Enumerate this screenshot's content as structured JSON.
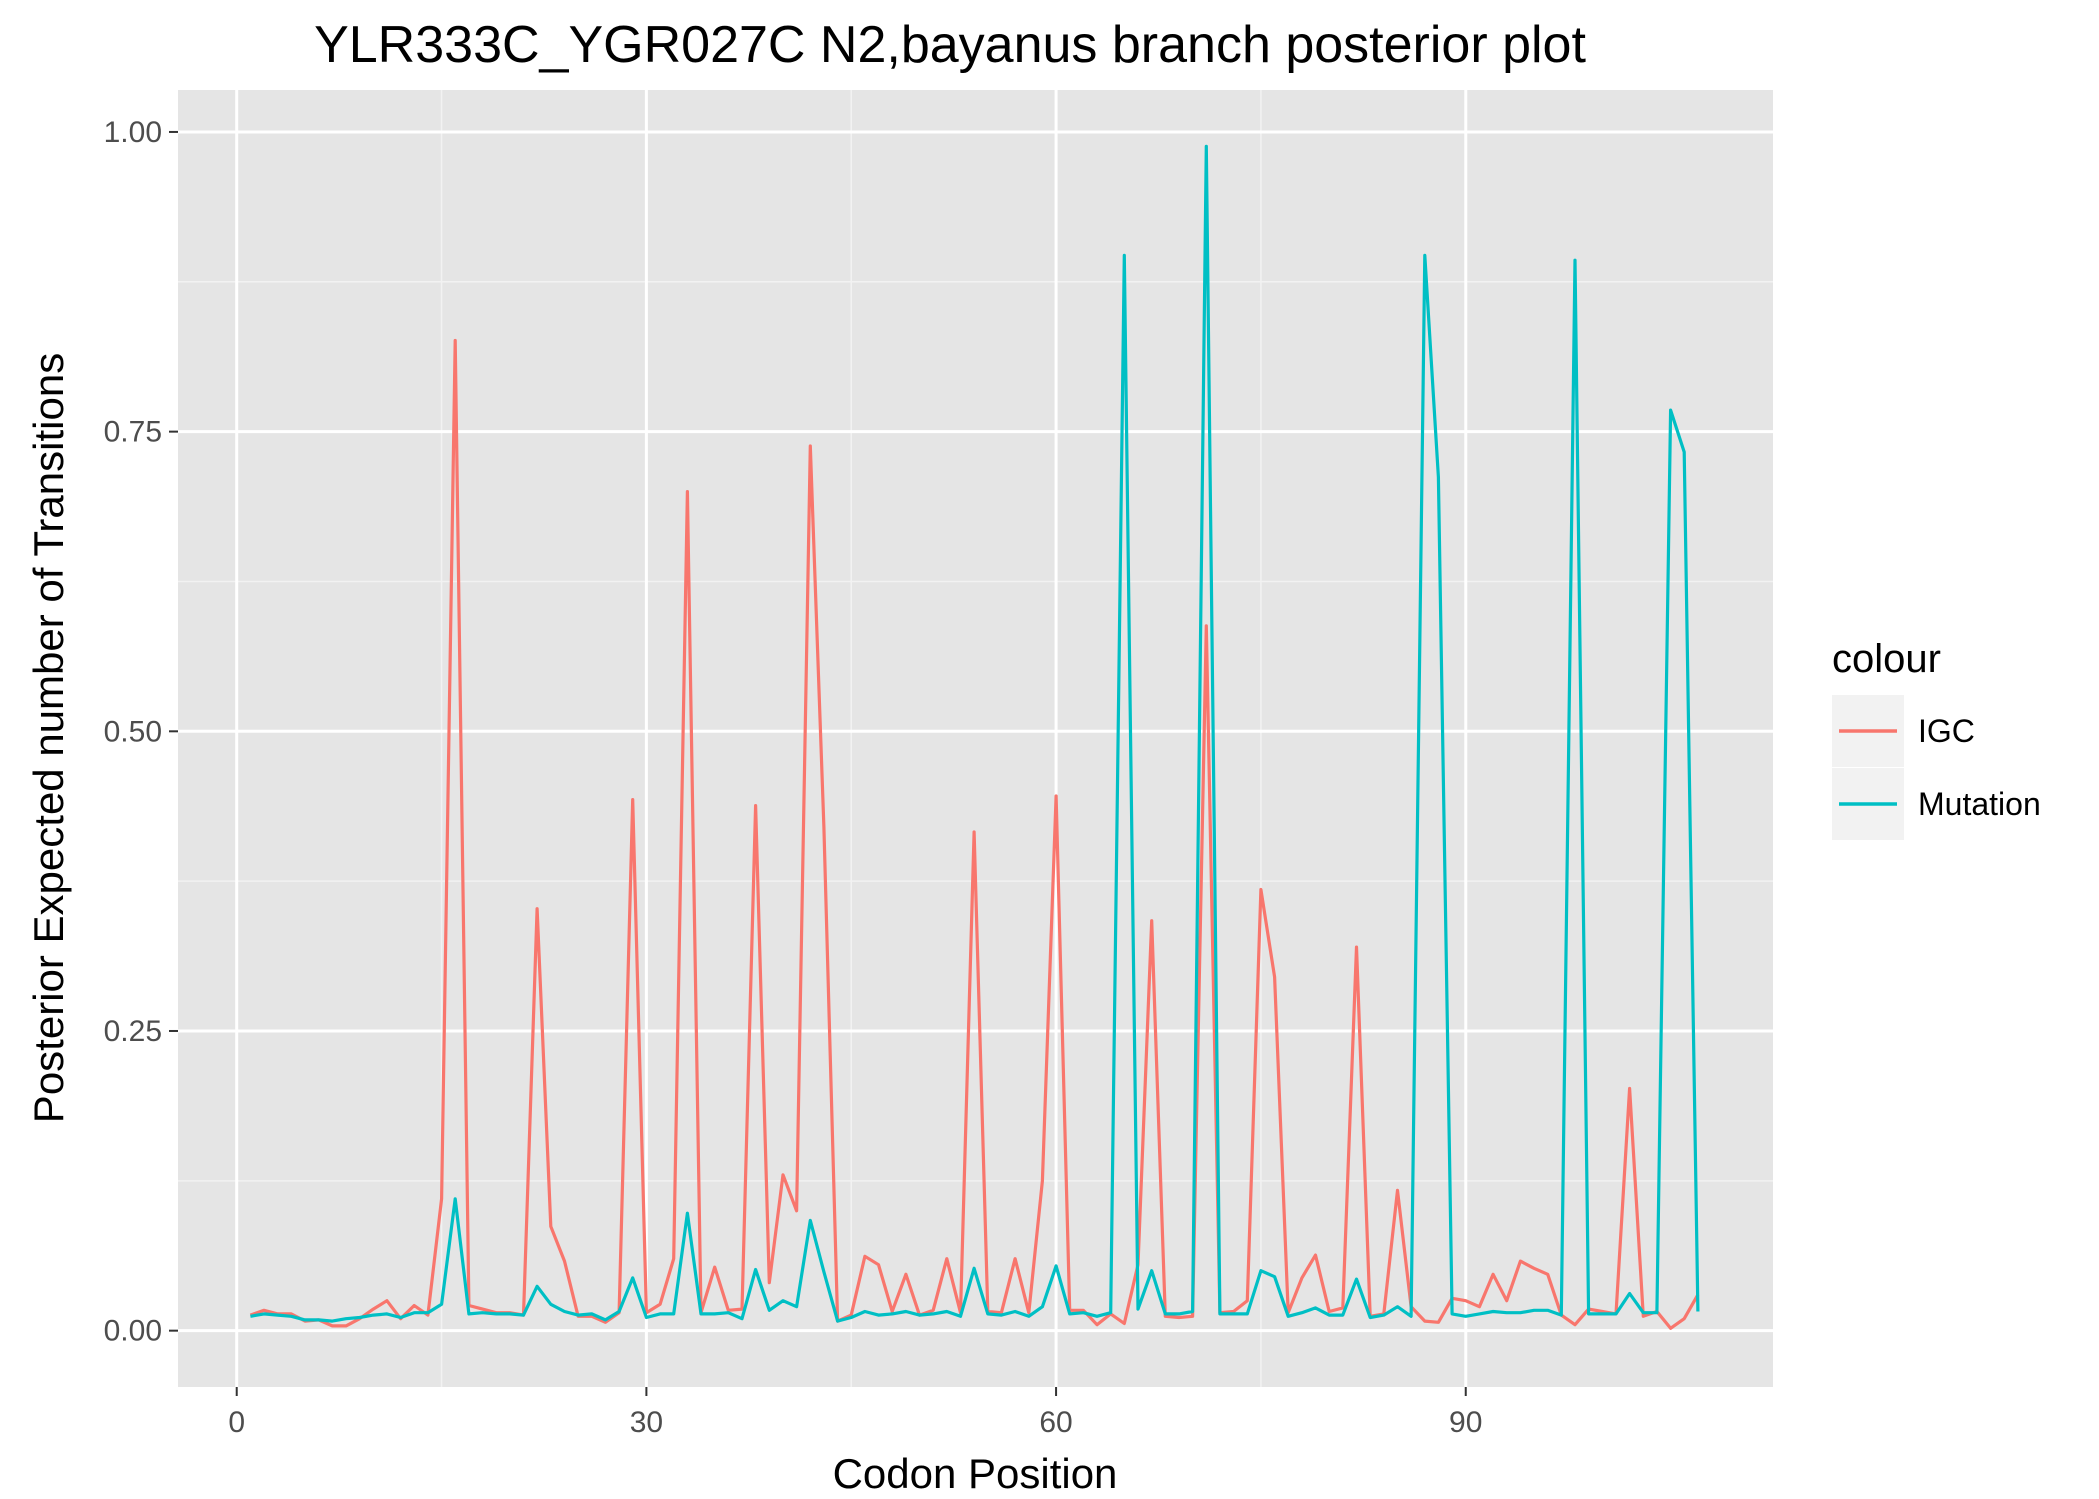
{
  "chart_data": {
    "type": "line",
    "title": "YLR333C_YGR027C N2,bayanus branch posterior plot",
    "xlabel": "Codon Position",
    "ylabel": "Posterior Expected number of Transitions",
    "xlim": [
      -4.3,
      112.5
    ],
    "ylim": [
      -0.047,
      1.035
    ],
    "xticks": [
      0,
      30,
      60,
      90
    ],
    "xtick_labels": [
      "0",
      "30",
      "60",
      "90"
    ],
    "yticks": [
      0.0,
      0.25,
      0.5,
      0.75,
      1.0
    ],
    "ytick_labels": [
      "0.00",
      "0.25",
      "0.50",
      "0.75",
      "1.00"
    ],
    "grid": true,
    "legend": {
      "title": "colour",
      "position": "right"
    },
    "x": [
      1,
      2,
      3,
      4,
      5,
      6,
      7,
      8,
      9,
      10,
      11,
      12,
      13,
      14,
      15,
      16,
      17,
      18,
      19,
      20,
      21,
      22,
      23,
      24,
      25,
      26,
      27,
      28,
      29,
      30,
      31,
      32,
      33,
      34,
      35,
      36,
      37,
      38,
      39,
      40,
      41,
      42,
      43,
      44,
      45,
      46,
      47,
      48,
      49,
      50,
      51,
      52,
      53,
      54,
      55,
      56,
      57,
      58,
      59,
      60,
      61,
      62,
      63,
      64,
      65,
      66,
      67,
      68,
      69,
      70,
      71,
      72,
      73,
      74,
      75,
      76,
      77,
      78,
      79,
      80,
      81,
      82,
      83,
      84,
      85,
      86,
      87,
      88,
      89,
      90,
      91,
      92,
      93,
      94,
      95,
      96,
      97,
      98,
      99,
      100,
      101,
      102,
      103,
      104,
      105,
      106,
      107
    ],
    "series": [
      {
        "name": "IGC",
        "color": "#F8766D",
        "values": [
          0.013,
          0.017,
          0.014,
          0.014,
          0.008,
          0.009,
          0.004,
          0.004,
          0.01,
          0.018,
          0.025,
          0.01,
          0.021,
          0.013,
          0.11,
          0.826,
          0.021,
          0.018,
          0.015,
          0.015,
          0.013,
          0.352,
          0.087,
          0.058,
          0.012,
          0.012,
          0.007,
          0.015,
          0.443,
          0.015,
          0.022,
          0.06,
          0.7,
          0.015,
          0.053,
          0.017,
          0.018,
          0.438,
          0.04,
          0.13,
          0.1,
          0.738,
          0.42,
          0.008,
          0.013,
          0.062,
          0.055,
          0.016,
          0.047,
          0.013,
          0.017,
          0.06,
          0.015,
          0.416,
          0.016,
          0.015,
          0.06,
          0.015,
          0.125,
          0.446,
          0.017,
          0.017,
          0.005,
          0.014,
          0.006,
          0.055,
          0.342,
          0.012,
          0.011,
          0.012,
          0.588,
          0.015,
          0.016,
          0.025,
          0.368,
          0.295,
          0.015,
          0.044,
          0.063,
          0.016,
          0.019,
          0.32,
          0.012,
          0.014,
          0.117,
          0.02,
          0.008,
          0.007,
          0.027,
          0.025,
          0.02,
          0.047,
          0.025,
          0.058,
          0.052,
          0.047,
          0.013,
          0.005,
          0.018,
          0.016,
          0.014,
          0.202,
          0.012,
          0.016,
          0.002,
          0.01,
          0.03
        ]
      },
      {
        "name": "Mutation",
        "color": "#00BFC4",
        "values": [
          0.012,
          0.014,
          0.013,
          0.012,
          0.009,
          0.009,
          0.008,
          0.01,
          0.011,
          0.013,
          0.014,
          0.011,
          0.015,
          0.015,
          0.022,
          0.11,
          0.014,
          0.015,
          0.014,
          0.014,
          0.013,
          0.037,
          0.022,
          0.016,
          0.013,
          0.014,
          0.009,
          0.016,
          0.044,
          0.011,
          0.014,
          0.014,
          0.098,
          0.014,
          0.014,
          0.015,
          0.01,
          0.051,
          0.017,
          0.025,
          0.02,
          0.092,
          0.049,
          0.008,
          0.011,
          0.016,
          0.013,
          0.014,
          0.016,
          0.013,
          0.014,
          0.016,
          0.012,
          0.052,
          0.014,
          0.013,
          0.016,
          0.012,
          0.02,
          0.054,
          0.014,
          0.015,
          0.012,
          0.015,
          0.897,
          0.018,
          0.05,
          0.014,
          0.014,
          0.016,
          0.988,
          0.014,
          0.014,
          0.014,
          0.05,
          0.045,
          0.012,
          0.015,
          0.019,
          0.013,
          0.013,
          0.043,
          0.011,
          0.013,
          0.02,
          0.012,
          0.897,
          0.712,
          0.014,
          0.012,
          0.014,
          0.016,
          0.015,
          0.015,
          0.017,
          0.017,
          0.013,
          0.893,
          0.014,
          0.014,
          0.014,
          0.031,
          0.015,
          0.015,
          0.768,
          0.733,
          0.016
        ]
      }
    ]
  }
}
